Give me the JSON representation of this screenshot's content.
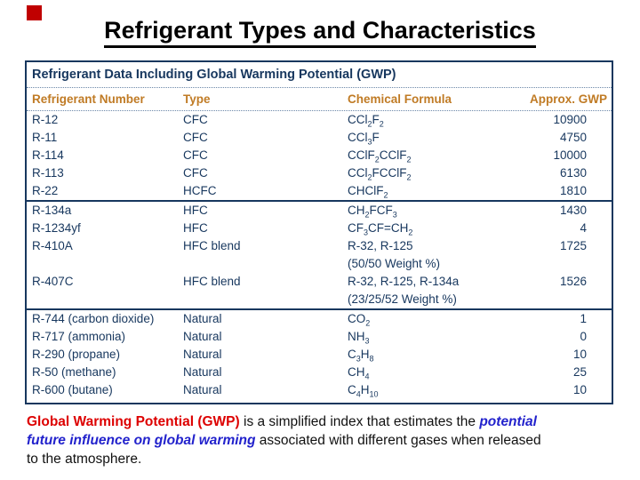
{
  "title": "Refrigerant Types and Characteristics",
  "corner_marker_color": "#c00000",
  "colors": {
    "navy": "#17375e",
    "orange": "#c07b25",
    "dotted_line": "#6b87a8",
    "red_text": "#dd0000",
    "blue_text": "#2222cc"
  },
  "table": {
    "title": "Refrigerant Data Including Global Warming Potential (GWP)",
    "columns": [
      "Refrigerant Number",
      "Type",
      "Chemical Formula",
      "Approx. GWP"
    ],
    "groups": [
      {
        "rows": [
          {
            "number": "R-12",
            "type": "CFC",
            "formula": "CCl~2~F~2~",
            "gwp": "10900"
          },
          {
            "number": "R-11",
            "type": "CFC",
            "formula": "CCl~3~F",
            "gwp": "4750"
          },
          {
            "number": "R-114",
            "type": "CFC",
            "formula": "CClF~2~CClF~2~",
            "gwp": "10000"
          },
          {
            "number": "R-113",
            "type": "CFC",
            "formula": "CCl~2~FCClF~2~",
            "gwp": "6130"
          },
          {
            "number": "R-22",
            "type": "HCFC",
            "formula": "CHClF~2~",
            "gwp": "1810"
          }
        ]
      },
      {
        "rows": [
          {
            "number": "R-134a",
            "type": "HFC",
            "formula": "CH~2~FCF~3~",
            "gwp": "1430"
          },
          {
            "number": "R-1234yf",
            "type": "HFC",
            "formula": "CF~3~CF=CH~2~",
            "gwp": "4"
          },
          {
            "number": "R-410A",
            "type": "HFC blend",
            "formula": "R-32, R-125",
            "formula_line2": "(50/50 Weight %)",
            "gwp": "1725"
          },
          {
            "number": "R-407C",
            "type": "HFC blend",
            "formula": "R-32, R-125, R-134a",
            "formula_line2": "(23/25/52 Weight %)",
            "gwp": "1526"
          }
        ]
      },
      {
        "rows": [
          {
            "number": "R-744 (carbon dioxide)",
            "type": "Natural",
            "formula": "CO~2~",
            "gwp": "1"
          },
          {
            "number": "R-717 (ammonia)",
            "type": "Natural",
            "formula": "NH~3~",
            "gwp": "0"
          },
          {
            "number": "R-290 (propane)",
            "type": "Natural",
            "formula": "C~3~H~8~",
            "gwp": "10"
          },
          {
            "number": "R-50 (methane)",
            "type": "Natural",
            "formula": "CH~4~",
            "gwp": "25"
          },
          {
            "number": "R-600 (butane)",
            "type": "Natural",
            "formula": "C~4~H~10~",
            "gwp": "10"
          }
        ]
      }
    ]
  },
  "footer": {
    "lines": [
      [
        {
          "text": "Global Warming Potential (GWP)",
          "style": "red"
        },
        {
          "text": " is a simplified index that estimates the ",
          "style": "plain"
        },
        {
          "text": "potential",
          "style": "blue"
        }
      ],
      [
        {
          "text": "future influence on global warming",
          "style": "blue"
        },
        {
          "text": " associated with different gases when released",
          "style": "plain"
        }
      ],
      [
        {
          "text": "to the atmosphere.",
          "style": "plain"
        }
      ]
    ]
  }
}
